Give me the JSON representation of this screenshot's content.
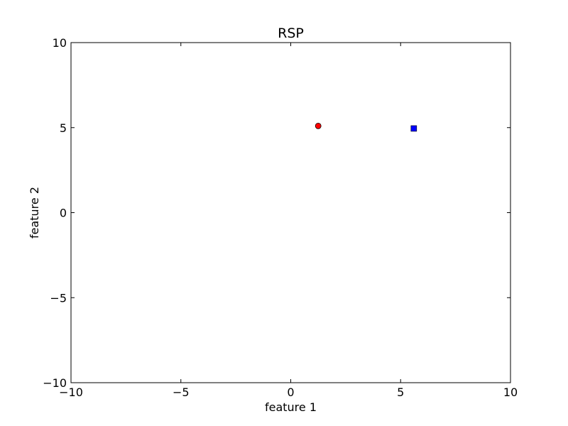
{
  "chart_data": {
    "type": "scatter",
    "title": "RSP",
    "xlabel": "feature 1",
    "ylabel": "feature 2",
    "xlim": [
      -10,
      10
    ],
    "ylim": [
      -10,
      10
    ],
    "x_ticks": [
      -10,
      -5,
      0,
      5,
      10
    ],
    "y_ticks": [
      -10,
      -5,
      0,
      5,
      10
    ],
    "x_tick_labels": [
      "−10",
      "−5",
      "0",
      "5",
      "10"
    ],
    "y_tick_labels": [
      "−10",
      "−5",
      "0",
      "5",
      "10"
    ],
    "grid": false,
    "series": [
      {
        "marker": "circle",
        "color": "#ff0000",
        "points": [
          {
            "x": 1.25,
            "y": 5.1
          }
        ]
      },
      {
        "marker": "square",
        "color": "#0000ff",
        "points": [
          {
            "x": 5.6,
            "y": 4.95
          }
        ]
      }
    ]
  }
}
